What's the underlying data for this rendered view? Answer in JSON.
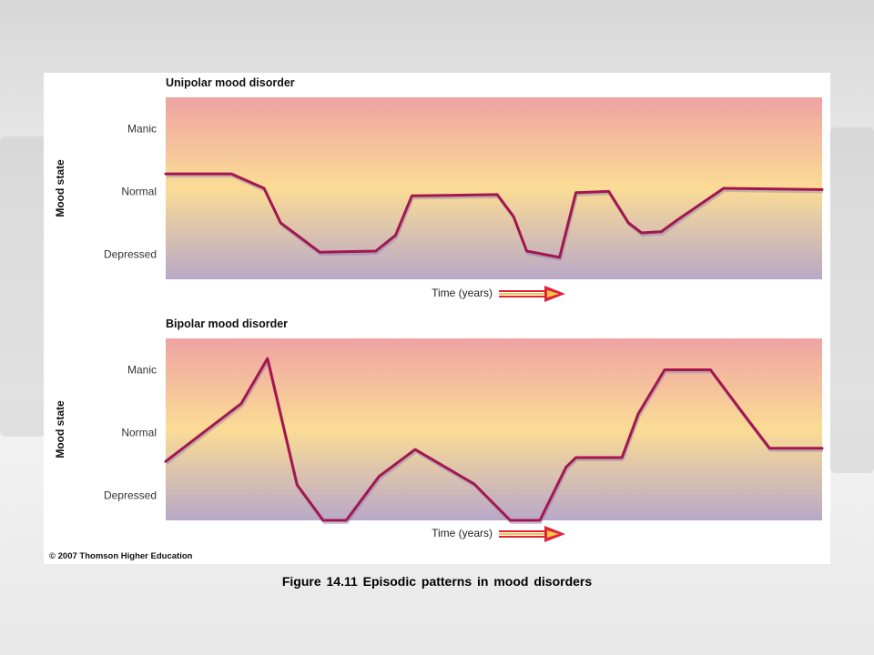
{
  "caption": "Figure 14.11  Episodic  patterns  in mood  disorders",
  "copyright": "© 2007 Thomson Higher Education",
  "colors": {
    "manic_band": "#eea3a3",
    "normal_band": "#fbdc95",
    "depressed_band": "#b8a8c8",
    "line": "#a3174e",
    "arrow_red": "#e0223a",
    "arrow_yellow": "#f6c744"
  },
  "chart_data": [
    {
      "type": "line",
      "title": "Unipolar mood disorder",
      "ylabel": "Mood state",
      "xlabel": "Time (years)",
      "y_categories": [
        "Depressed",
        "Normal",
        "Manic"
      ],
      "ylim": [
        -1.4,
        1.5
      ],
      "xlim": [
        0,
        100
      ],
      "x": [
        0,
        10,
        15,
        17.5,
        23.5,
        32,
        35,
        37.5,
        50.5,
        53,
        55,
        60,
        62.5,
        67.5,
        70.5,
        72.5,
        75.5,
        78,
        85,
        100
      ],
      "y": [
        0.28,
        0.28,
        0.05,
        -0.5,
        -0.97,
        -0.95,
        -0.7,
        -0.07,
        -0.05,
        -0.4,
        -0.95,
        -1.05,
        -0.02,
        0.0,
        -0.5,
        -0.66,
        -0.64,
        -0.45,
        0.05,
        0.03
      ]
    },
    {
      "type": "line",
      "title": "Bipolar mood disorder",
      "ylabel": "Mood state",
      "xlabel": "Time (years)",
      "y_categories": [
        "Depressed",
        "Normal",
        "Manic"
      ],
      "ylim": [
        -1.4,
        1.5
      ],
      "xlim": [
        0,
        100
      ],
      "x": [
        0,
        11.5,
        15.5,
        20,
        24,
        27.5,
        32.5,
        38,
        47,
        52.5,
        57,
        61,
        62.5,
        69.5,
        72,
        76,
        83,
        88,
        92,
        100
      ],
      "y": [
        -0.46,
        0.46,
        1.18,
        -0.83,
        -1.4,
        -1.4,
        -0.7,
        -0.27,
        -0.82,
        -1.4,
        -1.4,
        -0.55,
        -0.4,
        -0.4,
        0.3,
        1.0,
        1.0,
        0.3,
        -0.25,
        -0.25
      ]
    }
  ]
}
